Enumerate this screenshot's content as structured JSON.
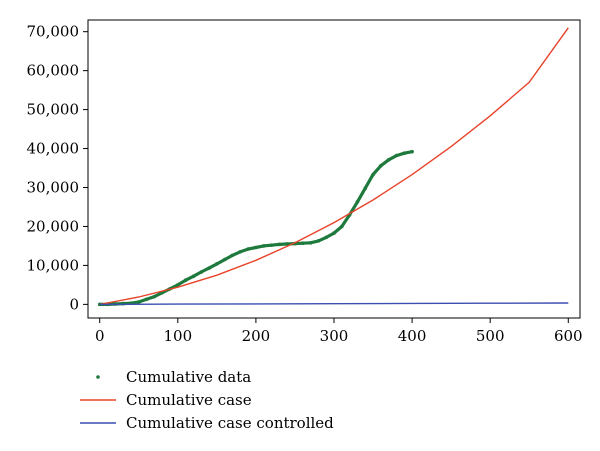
{
  "chart_data": {
    "type": "line",
    "title": "",
    "xlabel": "",
    "ylabel": "",
    "xlim": [
      -15,
      615
    ],
    "ylim": [
      -3500,
      73000
    ],
    "grid": false,
    "x_ticks": [
      0,
      100,
      200,
      300,
      400,
      500,
      600
    ],
    "x_tick_labels": [
      "0",
      "100",
      "200",
      "300",
      "400",
      "500",
      "600"
    ],
    "y_ticks": [
      0,
      10000,
      20000,
      30000,
      40000,
      50000,
      60000,
      70000
    ],
    "y_tick_labels": [
      "0",
      "10,000",
      "20,000",
      "30,000",
      "40,000",
      "50,000",
      "60,000",
      "70,000"
    ],
    "legend_position": "bottom-left",
    "series": [
      {
        "name": "Cumulative data",
        "kind": "scatter",
        "color": "#1e7a3c",
        "x": [
          0,
          10,
          20,
          30,
          40,
          50,
          60,
          70,
          80,
          90,
          100,
          110,
          120,
          130,
          140,
          150,
          160,
          170,
          180,
          190,
          200,
          210,
          220,
          230,
          240,
          250,
          260,
          270,
          280,
          290,
          300,
          310,
          320,
          330,
          340,
          350,
          360,
          370,
          380,
          390,
          400
        ],
        "y": [
          0,
          0,
          100,
          200,
          300,
          600,
          1300,
          2000,
          3000,
          4000,
          5000,
          6200,
          7200,
          8300,
          9300,
          10400,
          11500,
          12600,
          13500,
          14200,
          14600,
          15000,
          15200,
          15400,
          15500,
          15600,
          15700,
          15800,
          16300,
          17200,
          18300,
          20000,
          23000,
          26300,
          29800,
          33300,
          35600,
          37100,
          38200,
          38800,
          39200
        ]
      },
      {
        "name": "Cumulative case",
        "kind": "line",
        "color": "#e8432a",
        "x": [
          0,
          50,
          100,
          150,
          200,
          250,
          300,
          350,
          400,
          450,
          500,
          550,
          600
        ],
        "y": [
          0,
          1900,
          4400,
          7500,
          11300,
          15800,
          21000,
          26800,
          33300,
          40500,
          48400,
          57000,
          71000
        ]
      },
      {
        "name": "Cumulative case controlled",
        "kind": "line",
        "color": "#3a4fb0",
        "x": [
          0,
          100,
          200,
          300,
          400,
          500,
          600
        ],
        "y": [
          0,
          60,
          120,
          180,
          240,
          300,
          360
        ]
      }
    ]
  }
}
